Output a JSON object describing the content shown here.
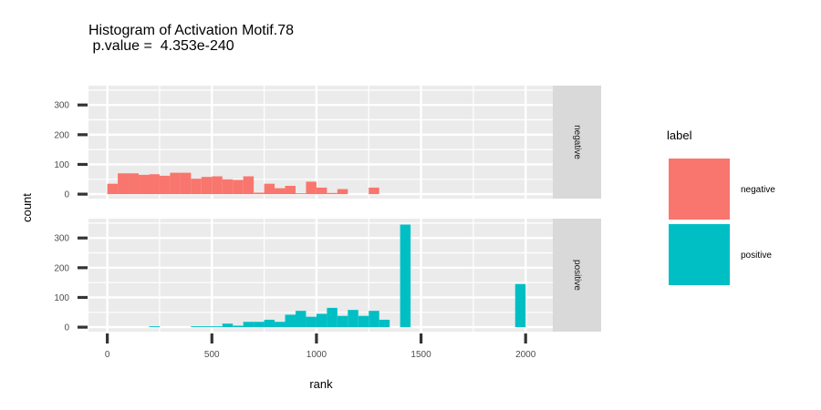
{
  "chart_data": {
    "type": "bar",
    "title_line1": "Histogram of Activation Motif.78",
    "title_line2": " p.value =  4.353e-240",
    "xlabel": "rank",
    "ylabel": "count",
    "xlim": [
      -90,
      2130
    ],
    "ylim": [
      -15,
      365
    ],
    "x_ticks": [
      0,
      500,
      1000,
      1500,
      2000
    ],
    "y_ticks": [
      0,
      100,
      200,
      300
    ],
    "binwidth": 50,
    "legend": {
      "title": "label",
      "placement": "right",
      "items": [
        {
          "name": "negative",
          "color": "#F8766D"
        },
        {
          "name": "positive",
          "color": "#00BFC4"
        }
      ]
    },
    "panel_background": "#EBEBEB",
    "strip_background": "#D9D9D9",
    "grid": true,
    "facets": [
      {
        "name": "negative",
        "color": "#F8766D",
        "bins": [
          {
            "x": 0,
            "count": 35
          },
          {
            "x": 50,
            "count": 70
          },
          {
            "x": 100,
            "count": 70
          },
          {
            "x": 150,
            "count": 65
          },
          {
            "x": 200,
            "count": 67
          },
          {
            "x": 250,
            "count": 62
          },
          {
            "x": 300,
            "count": 72
          },
          {
            "x": 350,
            "count": 72
          },
          {
            "x": 400,
            "count": 52
          },
          {
            "x": 450,
            "count": 58
          },
          {
            "x": 500,
            "count": 60
          },
          {
            "x": 550,
            "count": 50
          },
          {
            "x": 600,
            "count": 48
          },
          {
            "x": 650,
            "count": 60
          },
          {
            "x": 700,
            "count": 5
          },
          {
            "x": 750,
            "count": 35
          },
          {
            "x": 800,
            "count": 20
          },
          {
            "x": 850,
            "count": 28
          },
          {
            "x": 900,
            "count": 3
          },
          {
            "x": 950,
            "count": 42
          },
          {
            "x": 1000,
            "count": 22
          },
          {
            "x": 1050,
            "count": 4
          },
          {
            "x": 1100,
            "count": 17
          },
          {
            "x": 1150,
            "count": 0
          },
          {
            "x": 1200,
            "count": 0
          },
          {
            "x": 1250,
            "count": 22
          }
        ]
      },
      {
        "name": "positive",
        "color": "#00BFC4",
        "bins": [
          {
            "x": 200,
            "count": 3
          },
          {
            "x": 400,
            "count": 3
          },
          {
            "x": 450,
            "count": 3
          },
          {
            "x": 500,
            "count": 3
          },
          {
            "x": 550,
            "count": 12
          },
          {
            "x": 600,
            "count": 5
          },
          {
            "x": 650,
            "count": 18
          },
          {
            "x": 700,
            "count": 18
          },
          {
            "x": 750,
            "count": 25
          },
          {
            "x": 800,
            "count": 18
          },
          {
            "x": 850,
            "count": 42
          },
          {
            "x": 900,
            "count": 55
          },
          {
            "x": 950,
            "count": 35
          },
          {
            "x": 1000,
            "count": 45
          },
          {
            "x": 1050,
            "count": 65
          },
          {
            "x": 1100,
            "count": 38
          },
          {
            "x": 1150,
            "count": 58
          },
          {
            "x": 1200,
            "count": 38
          },
          {
            "x": 1250,
            "count": 55
          },
          {
            "x": 1300,
            "count": 25
          },
          {
            "x": 1350,
            "count": 0
          },
          {
            "x": 1400,
            "count": 345
          },
          {
            "x": 1650,
            "count": 0
          },
          {
            "x": 1700,
            "count": 0
          },
          {
            "x": 1750,
            "count": 0
          },
          {
            "x": 1800,
            "count": 0
          },
          {
            "x": 1850,
            "count": 0
          },
          {
            "x": 1900,
            "count": 0
          },
          {
            "x": 1950,
            "count": 145
          }
        ]
      }
    ]
  }
}
